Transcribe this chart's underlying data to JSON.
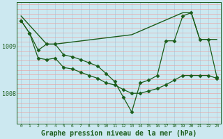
{
  "background_color": "#cce8f0",
  "grid_color_v": "#aaccdd",
  "grid_color_h": "#ee9999",
  "line_color": "#1a5c1a",
  "marker_color": "#1a5c1a",
  "xlabel": "Graphe pression niveau de la mer (hPa)",
  "xlabel_fontsize": 7,
  "ylabel_ticks": [
    1008,
    1009
  ],
  "xlim": [
    -0.5,
    23.5
  ],
  "ylim": [
    1007.35,
    1009.95
  ],
  "xticks": [
    0,
    1,
    2,
    3,
    4,
    5,
    6,
    7,
    8,
    9,
    10,
    11,
    12,
    13,
    14,
    15,
    16,
    17,
    18,
    19,
    20,
    21,
    22,
    23
  ],
  "series": [
    {
      "x": [
        0,
        3,
        4,
        13,
        19,
        20,
        21,
        22,
        23
      ],
      "y": [
        1009.65,
        1009.05,
        1009.05,
        1009.25,
        1009.72,
        1009.72,
        1009.15,
        1009.15,
        1009.15
      ],
      "marker": null,
      "markersize": 0,
      "linewidth": 1.0
    },
    {
      "x": [
        0,
        1,
        2,
        3,
        4,
        5,
        6,
        7,
        8,
        9,
        10,
        11,
        12,
        13,
        14,
        15,
        16,
        17,
        18,
        19,
        20,
        21,
        22,
        23
      ],
      "y": [
        1009.55,
        1009.28,
        1008.92,
        1009.05,
        1009.05,
        1008.82,
        1008.78,
        1008.72,
        1008.65,
        1008.58,
        1008.42,
        1008.25,
        1007.92,
        1007.6,
        1008.22,
        1008.28,
        1008.38,
        1009.12,
        1009.12,
        1009.65,
        1009.72,
        1009.15,
        1009.15,
        1008.35
      ],
      "marker": "D",
      "markersize": 2.5,
      "linewidth": 0.9
    },
    {
      "x": [
        0,
        1,
        2,
        3,
        4,
        5,
        6,
        7,
        8,
        9,
        10,
        11,
        12,
        13,
        14,
        15,
        16,
        17,
        18,
        19,
        20,
        21,
        22,
        23
      ],
      "y": [
        1009.55,
        1009.28,
        1008.75,
        1008.72,
        1008.75,
        1008.55,
        1008.52,
        1008.45,
        1008.38,
        1008.32,
        1008.22,
        1008.18,
        1008.08,
        1008.0,
        1008.0,
        1008.05,
        1008.1,
        1008.18,
        1008.28,
        1008.38,
        1008.38,
        1008.38,
        1008.38,
        1008.32
      ],
      "marker": "D",
      "markersize": 2.5,
      "linewidth": 0.9
    }
  ]
}
